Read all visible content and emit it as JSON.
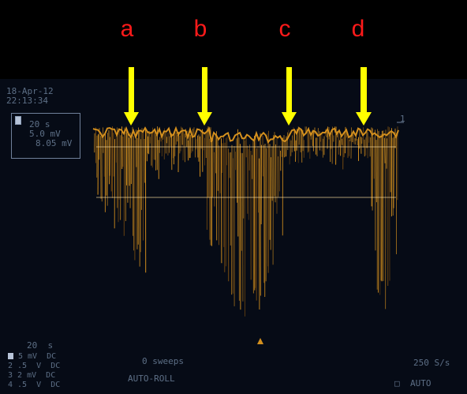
{
  "markers": [
    "a",
    "b",
    "c",
    "d"
  ],
  "screen": {
    "date": "18-Apr-12",
    "time": "22:13:34",
    "timebase": "20 s",
    "volts_div": "5.0 mV",
    "readout": "8.05 mV",
    "trace_number": "1",
    "bottom_timebase": "20  s",
    "channels": [
      {
        "num": "1",
        "scale": "5 mV",
        "coupling": "DC"
      },
      {
        "num": "2",
        "scale": ".5  V",
        "coupling": "DC"
      },
      {
        "num": "3",
        "scale": "2 mV",
        "coupling": "DC"
      },
      {
        "num": "4",
        "scale": ".5  V",
        "coupling": "DC"
      }
    ],
    "sweeps": "0 sweeps",
    "mode": "AUTO-ROLL",
    "sample_rate": "250 S/s",
    "trigger": "AUTO"
  },
  "colors": {
    "trace": "#d4901e",
    "trace_dark": "#7a4d10",
    "arrow": "#ffff00",
    "letter": "#ff1a1a",
    "osd": "#5d6f86"
  }
}
